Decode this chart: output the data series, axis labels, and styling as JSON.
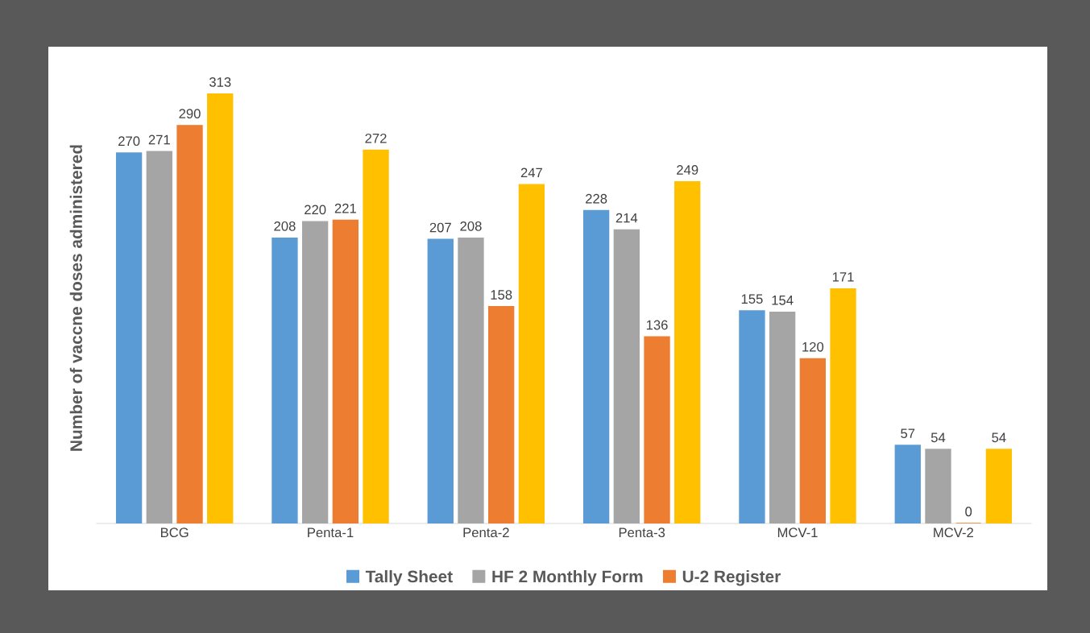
{
  "chart_data": {
    "type": "bar",
    "ylabel": "Number of vaccne doses administered",
    "categories": [
      "BCG",
      "Penta-1",
      "Penta-2",
      "Penta-3",
      "MCV-1",
      "MCV-2"
    ],
    "series": [
      {
        "name": "Tally Sheet",
        "color": "#5b9bd5",
        "values": [
          270,
          208,
          207,
          228,
          155,
          57
        ]
      },
      {
        "name": "HF 2 Monthly Form",
        "color": "#a5a5a5",
        "values": [
          271,
          220,
          208,
          214,
          154,
          54
        ]
      },
      {
        "name": "U-2 Register",
        "color": "#ed7d31",
        "values": [
          290,
          221,
          158,
          136,
          120,
          0
        ]
      },
      {
        "color": "#ffc000",
        "values": [
          313,
          272,
          247,
          249,
          171,
          54
        ]
      }
    ],
    "data_labels": true,
    "legend": "bottom",
    "grid": false,
    "tick_labels": "x"
  }
}
